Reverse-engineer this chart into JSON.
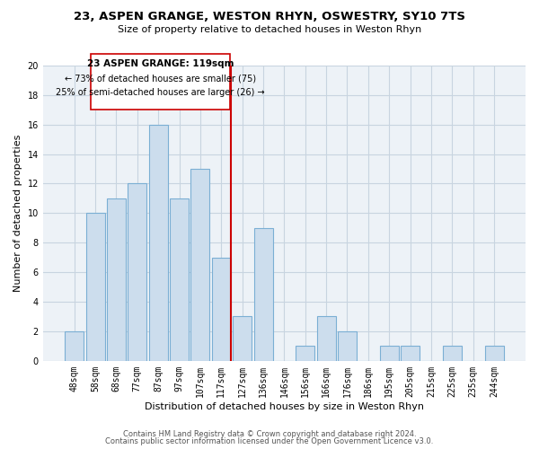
{
  "title": "23, ASPEN GRANGE, WESTON RHYN, OSWESTRY, SY10 7TS",
  "subtitle": "Size of property relative to detached houses in Weston Rhyn",
  "xlabel": "Distribution of detached houses by size in Weston Rhyn",
  "ylabel": "Number of detached properties",
  "bar_labels": [
    "48sqm",
    "58sqm",
    "68sqm",
    "77sqm",
    "87sqm",
    "97sqm",
    "107sqm",
    "117sqm",
    "127sqm",
    "136sqm",
    "146sqm",
    "156sqm",
    "166sqm",
    "176sqm",
    "186sqm",
    "195sqm",
    "205sqm",
    "215sqm",
    "225sqm",
    "235sqm",
    "244sqm"
  ],
  "bar_values": [
    2,
    10,
    11,
    12,
    16,
    11,
    13,
    7,
    3,
    9,
    0,
    1,
    3,
    2,
    0,
    1,
    1,
    0,
    1,
    0,
    1
  ],
  "bar_color": "#ccdded",
  "bar_edge_color": "#7bafd4",
  "vline_bar_index": 7,
  "vline_color": "#cc0000",
  "annotation_title": "23 ASPEN GRANGE: 119sqm",
  "annotation_line1": "← 73% of detached houses are smaller (75)",
  "annotation_line2": "25% of semi-detached houses are larger (26) →",
  "box_edge_color": "#cc0000",
  "ylim": [
    0,
    20
  ],
  "yticks": [
    0,
    2,
    4,
    6,
    8,
    10,
    12,
    14,
    16,
    18,
    20
  ],
  "footer_line1": "Contains HM Land Registry data © Crown copyright and database right 2024.",
  "footer_line2": "Contains public sector information licensed under the Open Government Licence v3.0.",
  "bg_color": "#edf2f7",
  "grid_color": "#c8d4e0"
}
